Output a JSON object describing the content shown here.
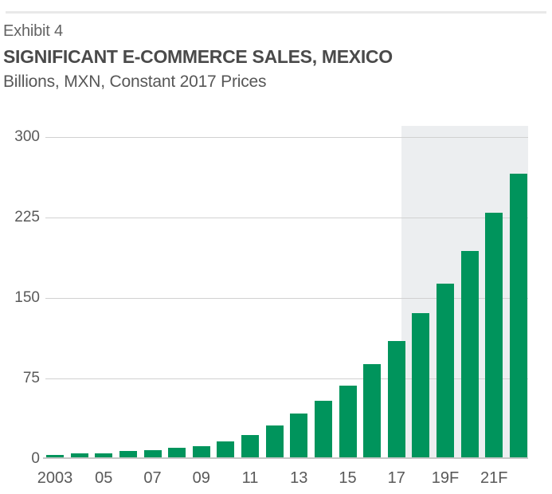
{
  "header": {
    "exhibit_label": "Exhibit 4"
  },
  "chart_data": {
    "type": "bar",
    "title": "SIGNIFICANT E-COMMERCE SALES, MEXICO",
    "subtitle": "Billions, MXN, Constant 2017 Prices",
    "categories": [
      "2003",
      "2004",
      "2005",
      "2006",
      "2007",
      "2008",
      "2009",
      "2010",
      "2011",
      "2012",
      "2013",
      "2014",
      "2015",
      "2016",
      "2017",
      "2018F",
      "2019F",
      "2020F",
      "2021F",
      "2022F"
    ],
    "tick_labels": [
      "2003",
      "",
      "05",
      "",
      "07",
      "",
      "09",
      "",
      "11",
      "",
      "13",
      "",
      "15",
      "",
      "17",
      "",
      "19F",
      "",
      "21F",
      ""
    ],
    "values": [
      2.5,
      4,
      4,
      6,
      7,
      9,
      10.5,
      15,
      21,
      30,
      41,
      53,
      67,
      87,
      108,
      134,
      162,
      192,
      228,
      264
    ],
    "ylabel": "",
    "xlabel": "",
    "yticks": [
      0,
      75,
      150,
      225,
      300
    ],
    "ylim": [
      0,
      310
    ],
    "grid": "horizontal",
    "legend": "none",
    "forecast_start_index": 15,
    "bar_color": "#00945c",
    "forecast_band_color": "#eceef0"
  }
}
